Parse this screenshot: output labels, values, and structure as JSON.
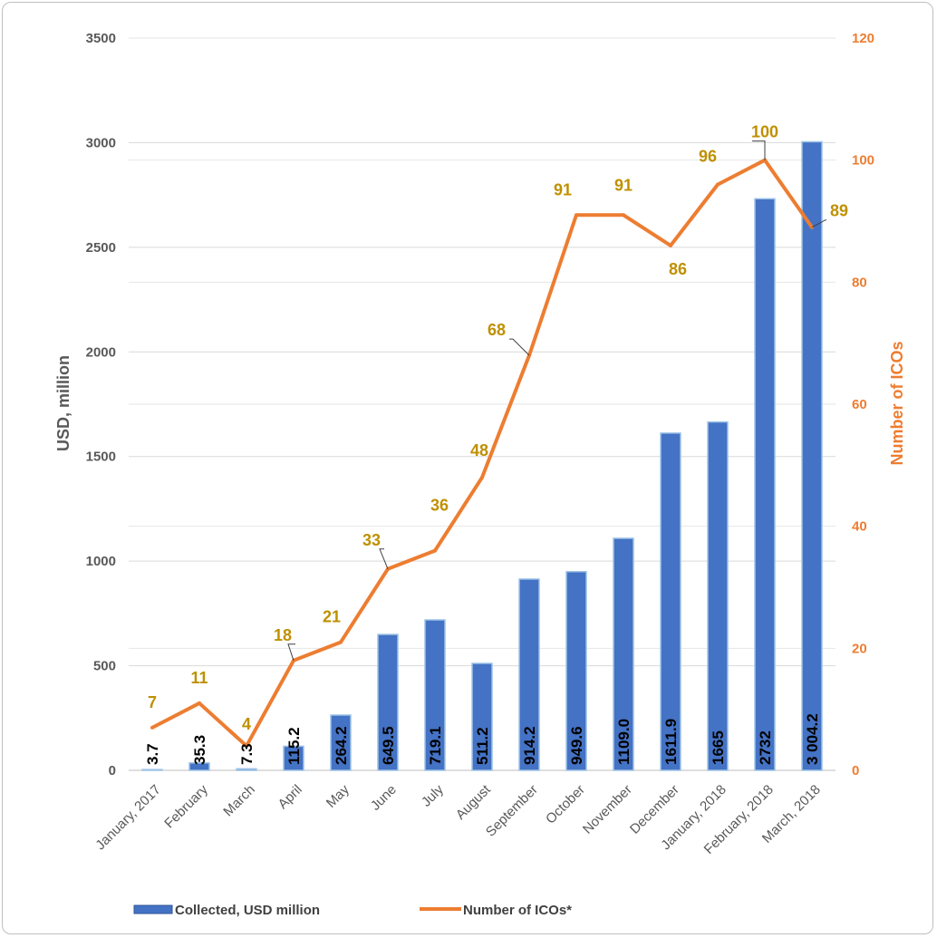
{
  "chart_data": {
    "type": "bar",
    "categories": [
      "January, 2017",
      "February",
      "March",
      "April",
      "May",
      "June",
      "July",
      "August",
      "September",
      "October",
      "November",
      "December",
      "January, 2018",
      "February, 2018",
      "March, 2018"
    ],
    "series": [
      {
        "name": "Collected, USD million",
        "type": "bar",
        "axis": "left",
        "values": [
          3.7,
          35.3,
          7.3,
          115.2,
          264.2,
          649.5,
          719.1,
          511.2,
          914.2,
          949.6,
          1109.0,
          1611.9,
          1665,
          2732,
          3004.2
        ],
        "labels": [
          "3.7",
          "35.3",
          "7.3",
          "115.2",
          "264.2",
          "649.5",
          "719.1",
          "511.2",
          "914.2",
          "949.6",
          "1109.0",
          "1611.9",
          "1665",
          "2732",
          "3 004.2"
        ],
        "color": "#4472c4"
      },
      {
        "name": "Number of ICOs*",
        "type": "line",
        "axis": "right",
        "values": [
          7,
          11,
          4,
          18,
          21,
          33,
          36,
          48,
          68,
          91,
          91,
          86,
          96,
          100,
          89
        ],
        "labels": [
          "7",
          "11",
          "4",
          "18",
          "21",
          "33",
          "36",
          "48",
          "68",
          "91",
          "91",
          "86",
          "96",
          "100",
          "89"
        ],
        "color": "#ed7d31",
        "label_color": "#bf9000"
      }
    ],
    "ylabel": "USD, million",
    "y2label": "Number of ICOs",
    "ylim": [
      0,
      3500
    ],
    "y2lim": [
      0,
      120
    ],
    "yticks": [
      "0",
      "500",
      "1000",
      "1500",
      "2000",
      "2500",
      "3000",
      "3500"
    ],
    "y2ticks": [
      "0",
      "20",
      "40",
      "60",
      "80",
      "100",
      "120"
    ],
    "grid": true,
    "legend": "bottom"
  }
}
